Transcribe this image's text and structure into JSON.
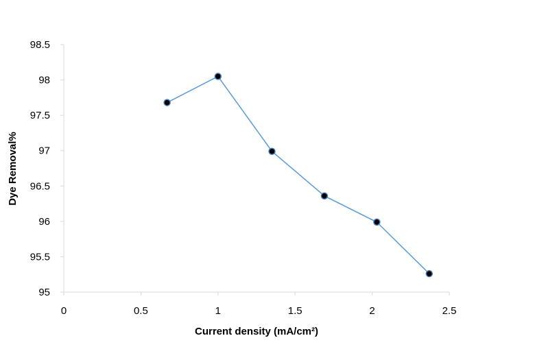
{
  "chart_data": {
    "type": "line",
    "title": "",
    "xlabel": "Current density (mA/cm²)",
    "ylabel": "Dye Removal%",
    "xlim": [
      0,
      2.5
    ],
    "ylim": [
      95,
      98.5
    ],
    "x_ticks": [
      0,
      0.5,
      1,
      1.5,
      2,
      2.5
    ],
    "x_tick_labels": [
      "0",
      "0.5",
      "1",
      "1.5",
      "2",
      "2.5"
    ],
    "y_ticks": [
      95,
      95.5,
      96,
      96.5,
      97,
      97.5,
      98,
      98.5
    ],
    "y_tick_labels": [
      "95",
      "95.5",
      "96",
      "96.5",
      "97",
      "97.5",
      "98",
      "98.5"
    ],
    "grid": false,
    "legend": "none",
    "series": [
      {
        "x": [
          0.67,
          1.0,
          1.35,
          1.69,
          2.03,
          2.37
        ],
        "y": [
          97.68,
          98.05,
          96.99,
          96.36,
          95.99,
          95.26
        ],
        "line_color": "#5b9bd5",
        "marker_color": "#000000"
      }
    ]
  }
}
